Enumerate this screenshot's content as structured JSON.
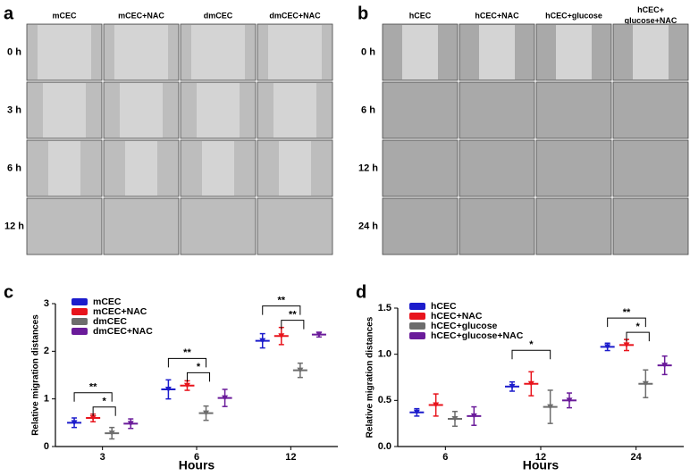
{
  "image_panels": [
    {
      "letter": "a",
      "columns": [
        "mCEC",
        "mCEC+NAC",
        "dmCEC",
        "dmCEC+NAC"
      ],
      "rows": [
        "0 h",
        "3 h",
        "6 h",
        "12 h"
      ]
    },
    {
      "letter": "b",
      "columns": [
        "hCEC",
        "hCEC+NAC",
        "hCEC+glucose",
        "hCEC+\nglucose+NAC"
      ],
      "rows": [
        "0 h",
        "6 h",
        "12 h",
        "24 h"
      ]
    }
  ],
  "chart_data": [
    {
      "type": "dot",
      "panel_label": "c",
      "x_label": "Hours",
      "y_label": "Relative migration distances",
      "categories": [
        "3",
        "6",
        "12"
      ],
      "ylim": [
        0,
        3
      ],
      "yticks": [
        0,
        1,
        2,
        3
      ],
      "series": [
        {
          "name": "mCEC",
          "color": "#1c1ccc",
          "values": [
            0.5,
            1.2,
            2.22
          ],
          "errors": [
            0.1,
            0.2,
            0.15
          ]
        },
        {
          "name": "mCEC+NAC",
          "color": "#e8141c",
          "values": [
            0.6,
            1.28,
            2.32
          ],
          "errors": [
            0.08,
            0.1,
            0.18
          ]
        },
        {
          "name": "dmCEC",
          "color": "#6d6d6d",
          "values": [
            0.28,
            0.7,
            1.6
          ],
          "errors": [
            0.12,
            0.15,
            0.15
          ]
        },
        {
          "name": "dmCEC+NAC",
          "color": "#6a1b9a",
          "values": [
            0.48,
            1.02,
            2.35
          ],
          "errors": [
            0.1,
            0.18,
            0.05
          ]
        }
      ],
      "annotations": [
        [
          "**",
          "*"
        ],
        [
          "**",
          "*"
        ],
        [
          "**",
          "**"
        ]
      ]
    },
    {
      "type": "dot",
      "panel_label": "d",
      "x_label": "Hours",
      "y_label": "Relative migration distances",
      "categories": [
        "6",
        "12",
        "24"
      ],
      "ylim": [
        0,
        1.5
      ],
      "yticks": [
        {
          "value": 0,
          "label": "0.0"
        },
        {
          "value": 0.5,
          "label": "0.5"
        },
        {
          "value": 1,
          "label": "1.0"
        },
        {
          "value": 1.5,
          "label": "1.5"
        }
      ],
      "series": [
        {
          "name": "hCEC",
          "color": "#1c1ccc",
          "values": [
            0.37,
            0.65,
            1.08
          ],
          "errors": [
            0.04,
            0.05,
            0.04
          ]
        },
        {
          "name": "hCEC+NAC",
          "color": "#e8141c",
          "values": [
            0.45,
            0.68,
            1.1
          ],
          "errors": [
            0.12,
            0.13,
            0.06
          ]
        },
        {
          "name": "hCEC+glucose",
          "color": "#6d6d6d",
          "values": [
            0.3,
            0.43,
            0.68
          ],
          "errors": [
            0.08,
            0.18,
            0.15
          ]
        },
        {
          "name": "hCEC+glucose+NAC",
          "color": "#6a1b9a",
          "values": [
            0.33,
            0.5,
            0.88
          ],
          "errors": [
            0.1,
            0.08,
            0.1
          ]
        }
      ],
      "annotations": [
        [],
        [
          "*"
        ],
        [
          "**",
          "*"
        ]
      ]
    }
  ]
}
